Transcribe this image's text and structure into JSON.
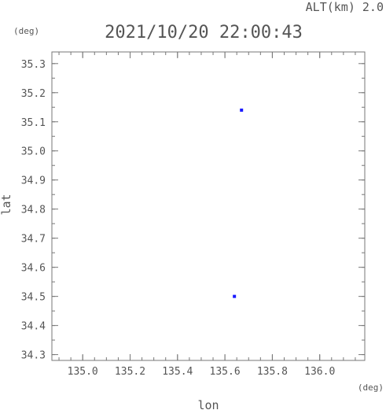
{
  "chart_data": {
    "type": "scatter",
    "title": "2021/10/20 22:00:43",
    "subtitle": "ALT(km) 2.0",
    "xlabel": "lon",
    "ylabel": "lat",
    "x_unit": "(deg)",
    "y_unit": "(deg)",
    "xlim": [
      134.87,
      136.19
    ],
    "ylim": [
      34.28,
      35.34
    ],
    "x_ticks": [
      "135.0",
      "135.2",
      "135.4",
      "135.6",
      "135.8",
      "136.0"
    ],
    "y_ticks": [
      "34.3",
      "34.4",
      "34.5",
      "34.6",
      "34.7",
      "34.8",
      "34.9",
      "35.0",
      "35.1",
      "35.2",
      "35.3"
    ],
    "grid": false,
    "marker_color": "#1a1aff",
    "points": [
      {
        "x": 135.67,
        "y": 35.14
      },
      {
        "x": 135.64,
        "y": 34.5
      }
    ]
  }
}
